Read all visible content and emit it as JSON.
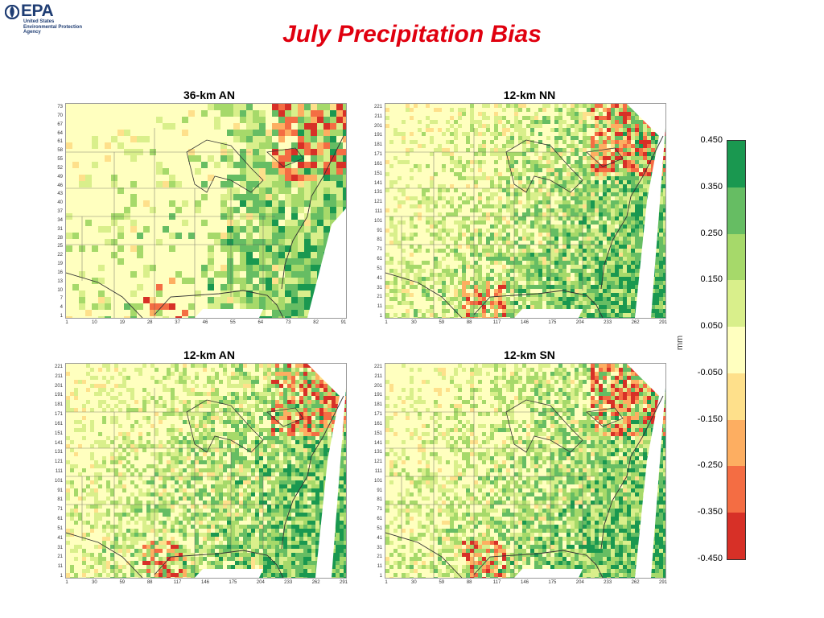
{
  "logo": {
    "word": "EPA",
    "agency": "United States\nEnvironmental Protection\nAgency"
  },
  "title": "July Precipitation Bias",
  "panels": [
    {
      "title": "36-km AN",
      "yticks": [
        "73",
        "70",
        "67",
        "64",
        "61",
        "58",
        "55",
        "52",
        "49",
        "46",
        "43",
        "40",
        "37",
        "34",
        "31",
        "28",
        "25",
        "22",
        "19",
        "16",
        "13",
        "10",
        "7",
        "4",
        "1"
      ],
      "xticks": [
        "1",
        "10",
        "19",
        "28",
        "37",
        "46",
        "55",
        "64",
        "73",
        "82",
        "91"
      ]
    },
    {
      "title": "12-km NN",
      "yticks": [
        "221",
        "211",
        "201",
        "191",
        "181",
        "171",
        "161",
        "151",
        "141",
        "131",
        "121",
        "111",
        "101",
        "91",
        "81",
        "71",
        "61",
        "51",
        "41",
        "31",
        "21",
        "11",
        "1"
      ],
      "xticks": [
        "1",
        "30",
        "59",
        "88",
        "117",
        "146",
        "175",
        "204",
        "233",
        "262",
        "291"
      ]
    },
    {
      "title": "12-km AN",
      "yticks": [
        "221",
        "211",
        "201",
        "191",
        "181",
        "171",
        "161",
        "151",
        "141",
        "131",
        "121",
        "111",
        "101",
        "91",
        "81",
        "71",
        "61",
        "51",
        "41",
        "31",
        "21",
        "11",
        "1"
      ],
      "xticks": [
        "1",
        "30",
        "59",
        "88",
        "117",
        "146",
        "175",
        "204",
        "233",
        "262",
        "291"
      ]
    },
    {
      "title": "12-km SN",
      "yticks": [
        "221",
        "211",
        "201",
        "191",
        "181",
        "171",
        "161",
        "151",
        "141",
        "131",
        "121",
        "111",
        "101",
        "91",
        "81",
        "71",
        "61",
        "51",
        "41",
        "31",
        "21",
        "11",
        "1"
      ],
      "xticks": [
        "1",
        "30",
        "59",
        "88",
        "117",
        "146",
        "175",
        "204",
        "233",
        "262",
        "291"
      ]
    }
  ],
  "colorbar": {
    "unit": "mm",
    "ticks": [
      "0.450",
      "0.350",
      "0.250",
      "0.150",
      "0.050",
      "-0.050",
      "-0.150",
      "-0.250",
      "-0.350",
      "-0.450"
    ],
    "colors": [
      "#1a9850",
      "#66bd63",
      "#a6d96a",
      "#d9ef8b",
      "#ffffbf",
      "#fee08b",
      "#fdae61",
      "#f46d43",
      "#d73027"
    ]
  },
  "colors": {
    "title": "#e0000f",
    "logo": "#1f3d73"
  }
}
